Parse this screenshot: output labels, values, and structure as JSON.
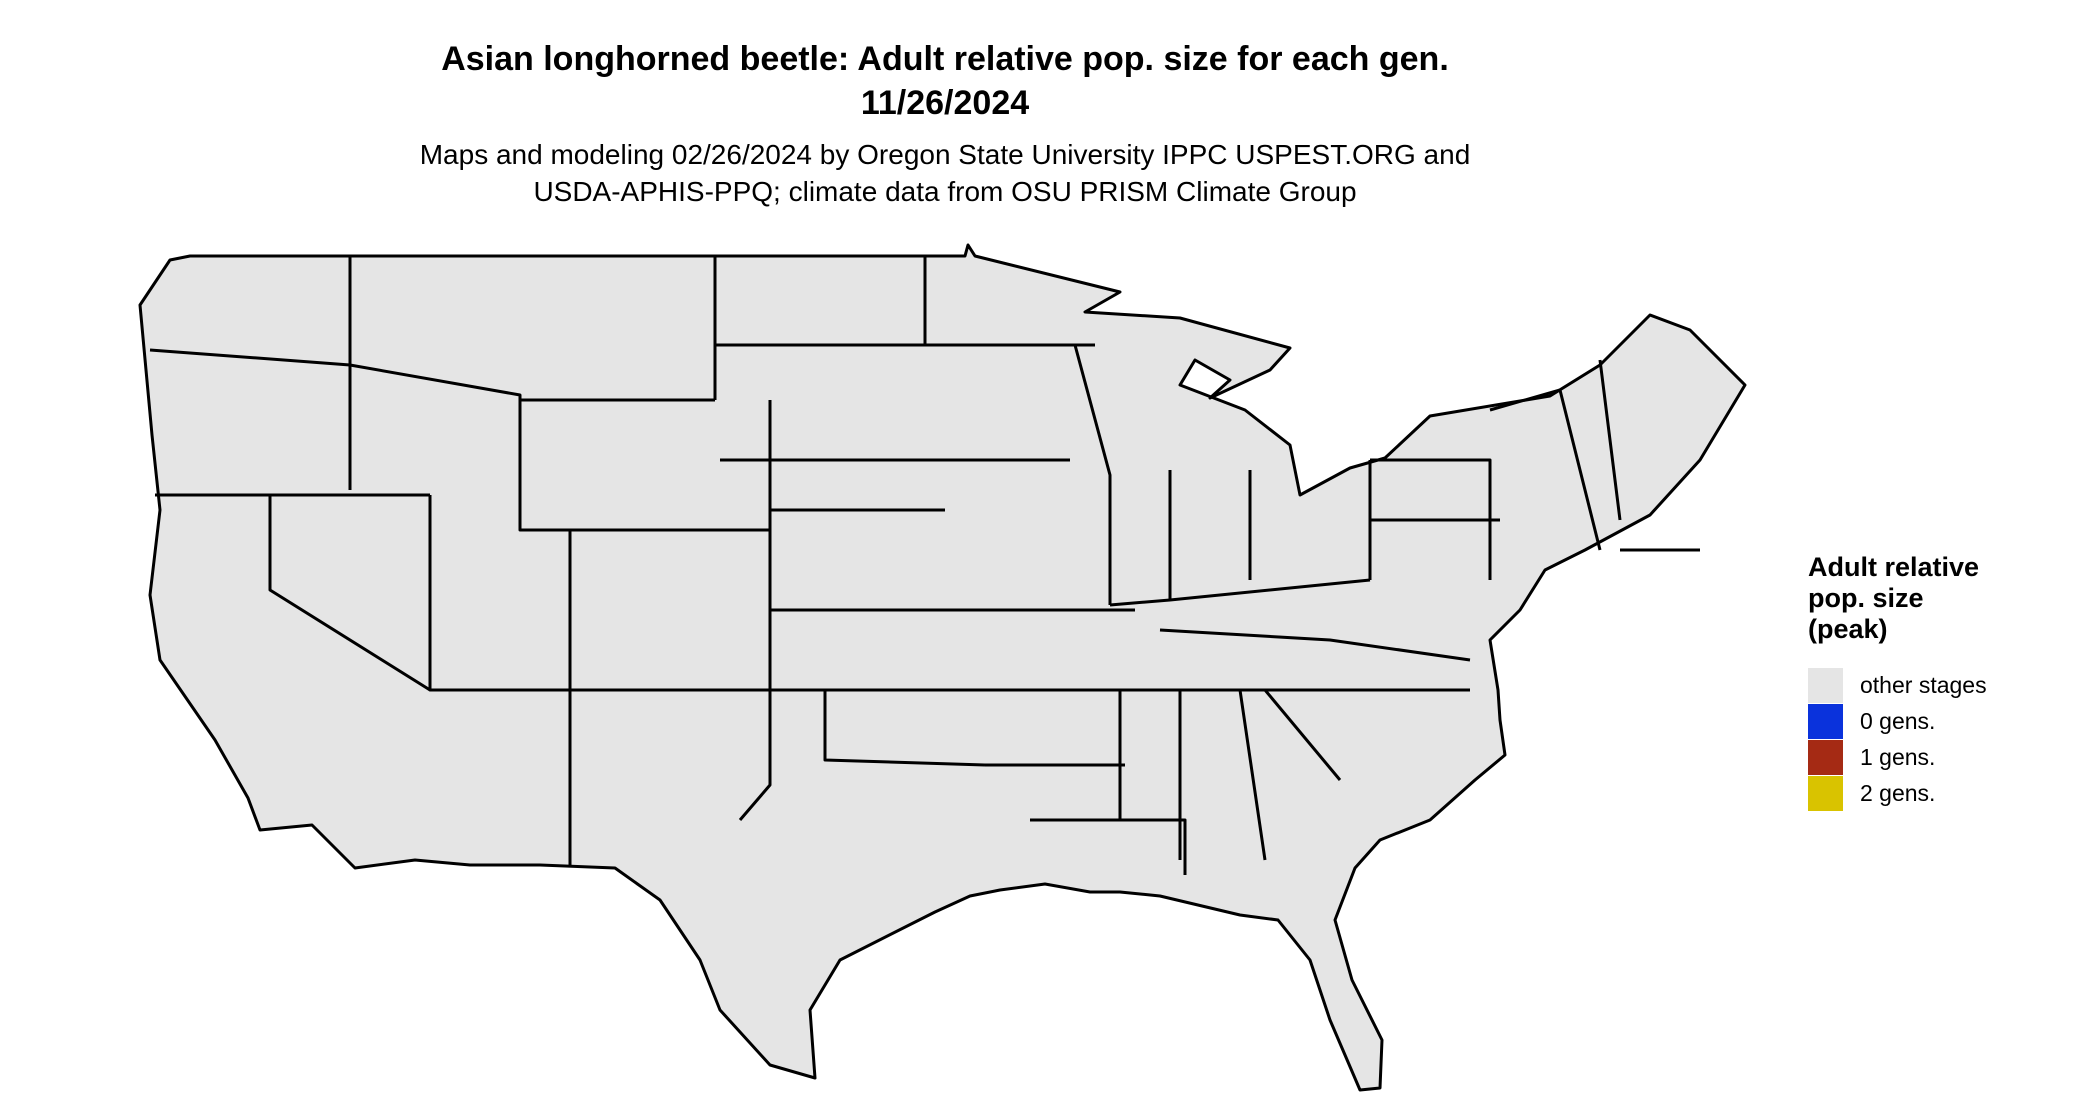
{
  "header": {
    "title_line1": "Asian longhorned beetle: Adult relative pop. size for each gen.",
    "title_line2": "11/26/2024",
    "subtitle_line1": "Maps and modeling 02/26/2024 by Oregon State University IPPC USPEST.ORG and",
    "subtitle_line2": "USDA-APHIS-PPQ; climate data from OSU PRISM Climate Group"
  },
  "legend": {
    "title_line1": "Adult relative",
    "title_line2": "pop. size",
    "title_line3": "(peak)",
    "items": [
      {
        "label": "other stages",
        "color": "#e5e5e5"
      },
      {
        "label": "0 gens.",
        "color": "#0a32dc"
      },
      {
        "label": "1 gens.",
        "color": "#a52a14"
      },
      {
        "label": "2 gens.",
        "color": "#d9c300"
      }
    ]
  },
  "map_colors": {
    "land": "#e5e5e5",
    "light_blue": "#00bcff",
    "dark_blue": "#0a3ad8",
    "orange": "#ff4a00",
    "dark_red": "#a52a14",
    "border": "#000000"
  }
}
